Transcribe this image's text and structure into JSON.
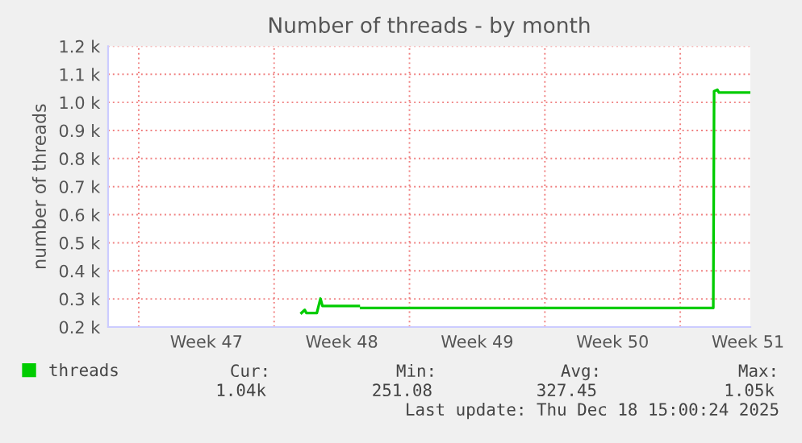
{
  "chart_data": {
    "type": "line",
    "title": "Number of threads - by month",
    "ylabel": "number of threads",
    "x": [
      "2025-11-25T10:00",
      "2025-11-25T14:00",
      "2025-11-25T16:00",
      "2025-11-26T00:00",
      "2025-11-26T05:00",
      "2025-11-26T09:30",
      "2025-11-26T12:00",
      "2025-11-28T09:00",
      "2025-11-28T10:00",
      "2025-11-28T12:00",
      "2025-12-16T17:00",
      "2025-12-16T18:00",
      "2025-12-16T22:00",
      "2025-12-17T00:00",
      "2025-12-18T15:00"
    ],
    "series": [
      {
        "name": "threads",
        "color": "#00cc00",
        "values": [
          250,
          261,
          250,
          250,
          250,
          301,
          275,
          275,
          null,
          268,
          268,
          1040,
          1045,
          1035,
          1035
        ]
      }
    ],
    "xlim": [
      "2025-11-15T10:00",
      "2025-12-18T15:00"
    ],
    "xticks": [
      {
        "value": "2025-11-17",
        "label": null
      },
      {
        "value": "2025-11-20T12:00",
        "label": "Week 47"
      },
      {
        "value": "2025-11-24",
        "label": null
      },
      {
        "value": "2025-11-27T12:00",
        "label": "Week 48"
      },
      {
        "value": "2025-12-01",
        "label": null
      },
      {
        "value": "2025-12-04T12:00",
        "label": "Week 49"
      },
      {
        "value": "2025-12-08",
        "label": null
      },
      {
        "value": "2025-12-11T12:00",
        "label": "Week 50"
      },
      {
        "value": "2025-12-15",
        "label": null
      },
      {
        "value": "2025-12-18T12:00",
        "label": "Week 51"
      }
    ],
    "ylim": [
      200,
      1200
    ],
    "yticks": [
      {
        "value": 200,
        "label": "0.2 k"
      },
      {
        "value": 300,
        "label": "0.3 k"
      },
      {
        "value": 400,
        "label": "0.4 k"
      },
      {
        "value": 500,
        "label": "0.5 k"
      },
      {
        "value": 600,
        "label": "0.6 k"
      },
      {
        "value": 700,
        "label": "0.7 k"
      },
      {
        "value": 800,
        "label": "0.8 k"
      },
      {
        "value": 900,
        "label": "0.9 k"
      },
      {
        "value": 1000,
        "label": "1.0 k"
      },
      {
        "value": 1100,
        "label": "1.1 k"
      },
      {
        "value": 1200,
        "label": "1.2 k"
      }
    ],
    "grid": true,
    "legend": "bottom left",
    "annotations": [
      "Cur:",
      "Min:",
      "Avg:",
      "Max:",
      "1.04k",
      "251.08",
      "327.45",
      "1.05k",
      "Last update: Thu Dec 18 15:00:24 2025"
    ]
  }
}
